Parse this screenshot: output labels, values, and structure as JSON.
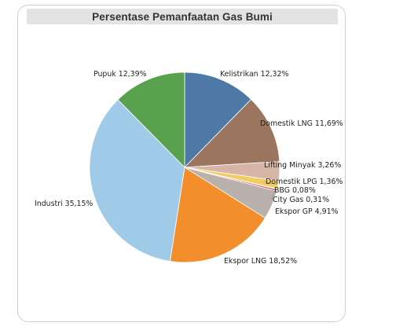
{
  "chart_data": {
    "type": "pie",
    "title": "Persentase Pemanfaatan Gas Bumi",
    "start": "12 o'clock",
    "direction": "clockwise",
    "slices": [
      {
        "label": "Kelistrikan",
        "value": 12.32,
        "value_text": "12,32%",
        "color": "#4e79a7"
      },
      {
        "label": "Domestik LNG",
        "value": 11.69,
        "value_text": "11,69%",
        "color": "#9c755f"
      },
      {
        "label": "Lifting Minyak",
        "value": 3.26,
        "value_text": "3,26%",
        "color": "#d7b5a6"
      },
      {
        "label": "Domestik LPG",
        "value": 1.36,
        "value_text": "1,36%",
        "color": "#f1ce63"
      },
      {
        "label": "BBG",
        "value": 0.08,
        "value_text": "0,08%",
        "color": "#59a14f"
      },
      {
        "label": "City Gas",
        "value": 0.31,
        "value_text": "0,31%",
        "color": "#e15759"
      },
      {
        "label": "Ekspor GP",
        "value": 4.91,
        "value_text": "4,91%",
        "color": "#bab0ac"
      },
      {
        "label": "Ekspor LNG",
        "value": 18.52,
        "value_text": "18,52%",
        "color": "#f28e2b"
      },
      {
        "label": "Industri",
        "value": 35.15,
        "value_text": "35,15%",
        "color": "#a0cbe8"
      },
      {
        "label": "Pupuk",
        "value": 12.39,
        "value_text": "12,39%",
        "color": "#59a14f"
      }
    ]
  }
}
